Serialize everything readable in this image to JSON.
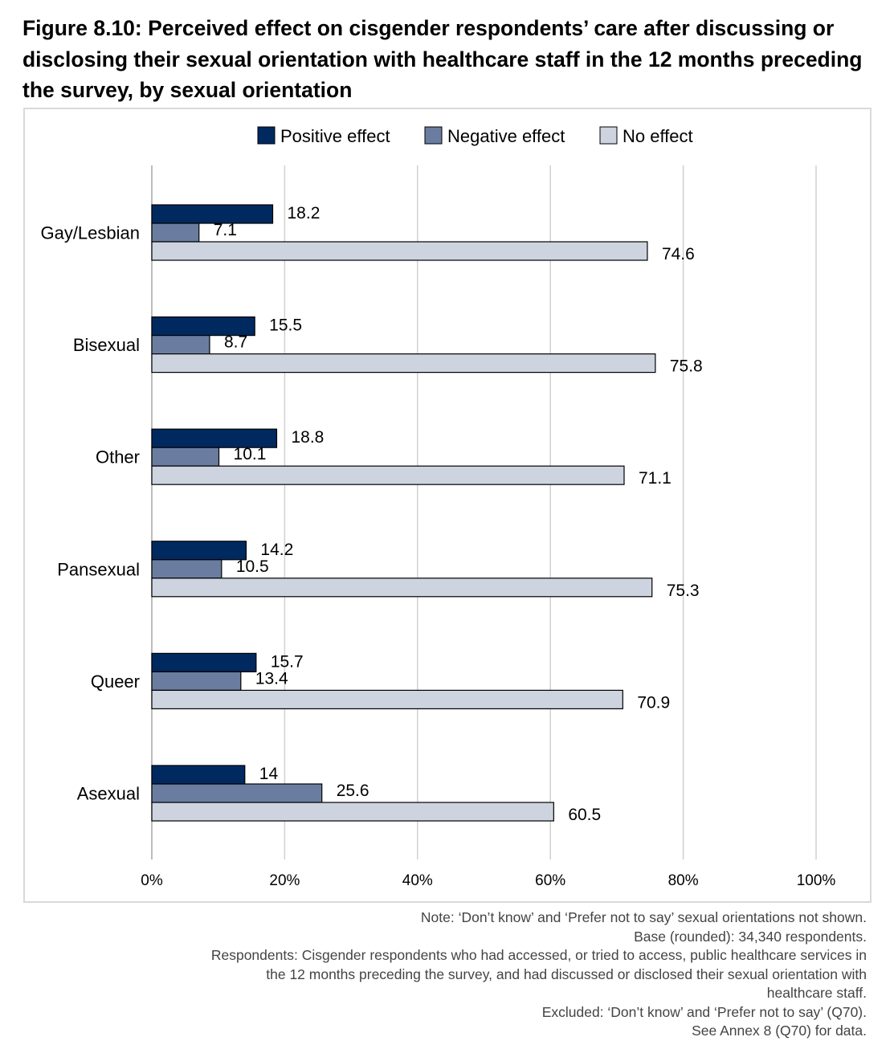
{
  "title": "Figure 8.10: Perceived effect on cisgender respondents’ care after discussing or disclosing their sexual orientation with healthcare staff in the 12 months preceding the survey, by sexual orientation",
  "chart_data": {
    "type": "bar",
    "orientation": "horizontal",
    "categories": [
      "Gay/Lesbian",
      "Bisexual",
      "Other",
      "Pansexual",
      "Queer",
      "Asexual"
    ],
    "series": [
      {
        "name": "Positive effect",
        "color": "#002960",
        "values": [
          18.2,
          15.5,
          18.8,
          14.2,
          15.7,
          14
        ]
      },
      {
        "name": "Negative effect",
        "color": "#6A7DA0",
        "values": [
          7.1,
          8.7,
          10.1,
          10.5,
          13.4,
          25.6
        ]
      },
      {
        "name": "No effect",
        "color": "#CDD4DF",
        "values": [
          74.6,
          75.8,
          71.1,
          75.3,
          70.9,
          60.5
        ]
      }
    ],
    "xlim": [
      0,
      100
    ],
    "xticks": [
      "0%",
      "20%",
      "40%",
      "60%",
      "80%",
      "100%"
    ],
    "xtick_values": [
      0,
      20,
      40,
      60,
      80,
      100
    ],
    "grid": true,
    "legend_position": "top-center"
  },
  "notes": [
    "Note: ‘Don’t know’ and ‘Prefer not to say’ sexual orientations not shown.",
    "Base (rounded): 34,340 respondents.",
    "Respondents: Cisgender respondents who had accessed, or tried to access, public healthcare services in the 12 months preceding the survey, and had discussed or disclosed their sexual orientation with healthcare staff.",
    "Excluded: ‘Don’t know’ and ‘Prefer not to say’ (Q70).",
    "See Annex 8 (Q70) for data."
  ]
}
